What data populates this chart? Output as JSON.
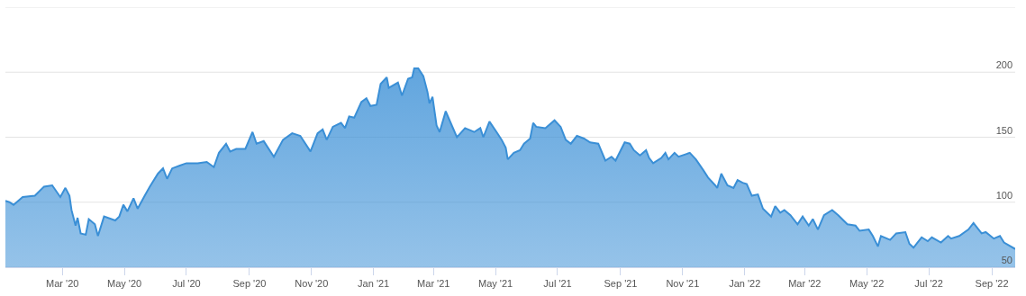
{
  "chart_data": {
    "type": "area",
    "grid": "y",
    "marker": "none",
    "xlim": [
      "2020-01-05",
      "2022-09-24"
    ],
    "xticks": [
      {
        "value": "2020-03-01",
        "label": "Mar '20"
      },
      {
        "value": "2020-05-01",
        "label": "May '20"
      },
      {
        "value": "2020-07-01",
        "label": "Jul '20"
      },
      {
        "value": "2020-09-01",
        "label": "Sep '20"
      },
      {
        "value": "2020-11-01",
        "label": "Nov '20"
      },
      {
        "value": "2021-01-01",
        "label": "Jan '21"
      },
      {
        "value": "2021-03-01",
        "label": "Mar '21"
      },
      {
        "value": "2021-05-01",
        "label": "May '21"
      },
      {
        "value": "2021-07-01",
        "label": "Jul '21"
      },
      {
        "value": "2021-09-01",
        "label": "Sep '21"
      },
      {
        "value": "2021-11-01",
        "label": "Nov '21"
      },
      {
        "value": "2022-01-01",
        "label": "Jan '22"
      },
      {
        "value": "2022-03-01",
        "label": "Mar '22"
      },
      {
        "value": "2022-05-01",
        "label": "May '22"
      },
      {
        "value": "2022-07-01",
        "label": "Jul '22"
      },
      {
        "value": "2022-09-01",
        "label": "Sep '22"
      }
    ],
    "ylim": [
      50,
      250
    ],
    "yticks": [
      50,
      100,
      150,
      200,
      {
        "value": 250,
        "label": null
      }
    ],
    "x": [
      "2020-01-05",
      "2020-01-09",
      "2020-01-13",
      "2020-01-22",
      "2020-02-03",
      "2020-02-12",
      "2020-02-20",
      "2020-02-28",
      "2020-03-04",
      "2020-03-08",
      "2020-03-10",
      "2020-03-14",
      "2020-03-16",
      "2020-03-19",
      "2020-03-24",
      "2020-03-27",
      "2020-04-02",
      "2020-04-05",
      "2020-04-11",
      "2020-04-22",
      "2020-04-26",
      "2020-04-30",
      "2020-05-04",
      "2020-05-10",
      "2020-05-14",
      "2020-05-21",
      "2020-05-26",
      "2020-06-03",
      "2020-06-08",
      "2020-06-12",
      "2020-06-17",
      "2020-06-24",
      "2020-07-01",
      "2020-07-12",
      "2020-07-21",
      "2020-07-28",
      "2020-08-02",
      "2020-08-09",
      "2020-08-13",
      "2020-08-19",
      "2020-08-28",
      "2020-09-04",
      "2020-09-08",
      "2020-09-15",
      "2020-09-25",
      "2020-10-04",
      "2020-10-13",
      "2020-10-21",
      "2020-10-31",
      "2020-11-07",
      "2020-11-12",
      "2020-11-16",
      "2020-11-22",
      "2020-11-30",
      "2020-12-04",
      "2020-12-08",
      "2020-12-13",
      "2020-12-20",
      "2020-12-25",
      "2020-12-29",
      "2021-01-04",
      "2021-01-08",
      "2021-01-14",
      "2021-01-16",
      "2021-01-25",
      "2021-01-29",
      "2021-02-04",
      "2021-02-08",
      "2021-02-10",
      "2021-02-14",
      "2021-02-19",
      "2021-02-23",
      "2021-02-25",
      "2021-02-28",
      "2021-03-04",
      "2021-03-07",
      "2021-03-13",
      "2021-03-19",
      "2021-03-24",
      "2021-04-01",
      "2021-04-10",
      "2021-04-16",
      "2021-04-19",
      "2021-04-25",
      "2021-05-02",
      "2021-05-07",
      "2021-05-11",
      "2021-05-13",
      "2021-05-19",
      "2021-05-25",
      "2021-05-29",
      "2021-06-04",
      "2021-06-07",
      "2021-06-10",
      "2021-06-19",
      "2021-06-28",
      "2021-07-04",
      "2021-07-09",
      "2021-07-14",
      "2021-07-20",
      "2021-07-27",
      "2021-08-02",
      "2021-08-10",
      "2021-08-17",
      "2021-08-23",
      "2021-08-27",
      "2021-09-05",
      "2021-09-10",
      "2021-09-14",
      "2021-09-20",
      "2021-09-26",
      "2021-09-29",
      "2021-10-03",
      "2021-10-11",
      "2021-10-15",
      "2021-10-18",
      "2021-10-24",
      "2021-10-28",
      "2021-11-08",
      "2021-11-14",
      "2021-11-21",
      "2021-11-26",
      "2021-12-03",
      "2021-12-05",
      "2021-12-09",
      "2021-12-15",
      "2021-12-21",
      "2021-12-25",
      "2021-12-30",
      "2022-01-03",
      "2022-01-08",
      "2022-01-14",
      "2022-01-19",
      "2022-01-27",
      "2022-01-31",
      "2022-02-05",
      "2022-02-09",
      "2022-02-15",
      "2022-02-22",
      "2022-02-27",
      "2022-03-05",
      "2022-03-09",
      "2022-03-14",
      "2022-03-20",
      "2022-03-28",
      "2022-04-03",
      "2022-04-12",
      "2022-04-20",
      "2022-04-24",
      "2022-05-03",
      "2022-05-07",
      "2022-05-12",
      "2022-05-15",
      "2022-05-24",
      "2022-05-30",
      "2022-06-08",
      "2022-06-12",
      "2022-06-16",
      "2022-06-24",
      "2022-06-30",
      "2022-07-04",
      "2022-07-13",
      "2022-07-20",
      "2022-07-23",
      "2022-07-31",
      "2022-08-09",
      "2022-08-14",
      "2022-08-22",
      "2022-08-26",
      "2022-09-03",
      "2022-09-09",
      "2022-09-13",
      "2022-09-24"
    ],
    "series": [
      {
        "color": "#3a8fd6",
        "values": [
          101,
          100,
          98,
          104,
          105,
          112,
          113,
          104,
          111,
          105,
          94,
          82,
          88,
          76,
          75,
          87,
          83,
          74,
          89,
          86,
          89,
          98,
          93,
          103,
          95,
          105,
          112,
          122,
          126,
          118,
          126,
          128,
          130,
          130,
          131,
          127,
          138,
          145,
          139,
          141,
          141,
          154,
          145,
          147,
          135,
          148,
          153,
          151,
          139,
          153,
          156,
          148,
          158,
          161,
          157,
          166,
          165,
          177,
          180,
          174,
          175,
          191,
          196,
          188,
          192,
          182,
          195,
          196,
          203,
          203,
          197,
          185,
          176,
          181,
          159,
          154,
          170,
          159,
          150,
          157,
          154,
          157,
          150,
          162,
          154,
          148,
          142,
          133,
          138,
          140,
          145,
          149,
          161,
          158,
          157,
          163,
          158,
          148,
          145,
          151,
          149,
          146,
          145,
          132,
          135,
          132,
          146,
          145,
          140,
          136,
          140,
          134,
          130,
          134,
          138,
          133,
          138,
          135,
          138,
          133,
          125,
          119,
          113,
          111,
          122,
          113,
          111,
          117,
          115,
          114,
          105,
          106,
          95,
          89,
          97,
          92,
          94,
          90,
          83,
          89,
          82,
          87,
          79,
          90,
          94,
          90,
          83,
          82,
          78,
          79,
          74,
          66,
          74,
          71,
          76,
          77,
          68,
          65,
          73,
          70,
          73,
          69,
          74,
          72,
          74,
          79,
          84,
          76,
          77,
          72,
          74,
          69,
          64
        ]
      }
    ]
  }
}
